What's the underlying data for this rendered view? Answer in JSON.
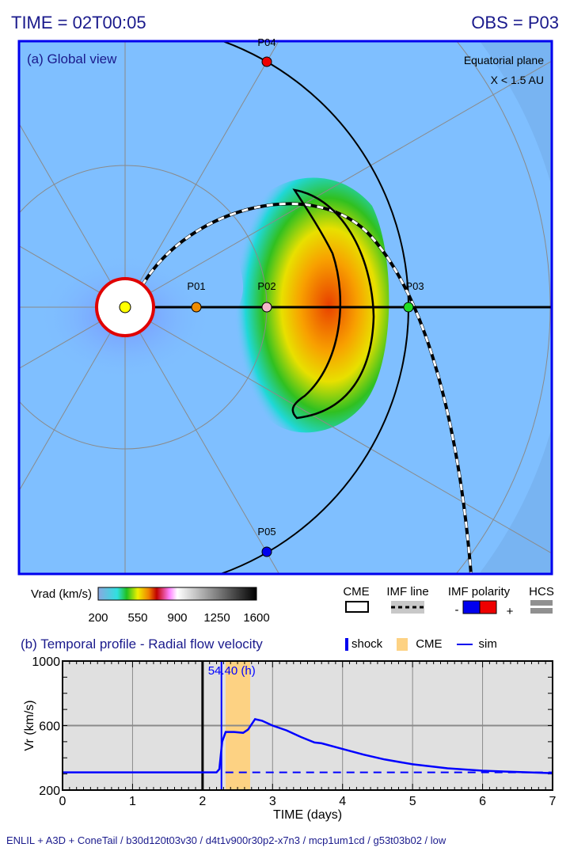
{
  "header": {
    "time": "TIME = 02T00:05",
    "obs": "OBS = P03"
  },
  "global_view": {
    "title": "(a) Global view",
    "note1": "Equatorial plane",
    "note2": "X < 1.5 AU",
    "points": [
      {
        "label": "P01",
        "color": "#f08c00"
      },
      {
        "label": "P02",
        "color": "#f4b8c8"
      },
      {
        "label": "P03",
        "color": "#22dd22"
      },
      {
        "label": "P04",
        "color": "#ee0000"
      },
      {
        "label": "P05",
        "color": "#0000ee"
      }
    ]
  },
  "colorbar": {
    "label": "Vrad (km/s)",
    "ticks": [
      "200",
      "550",
      "900",
      "1250",
      "1600"
    ]
  },
  "legend_top": {
    "cme": "CME",
    "imf_line": "IMF line",
    "imf_polarity": "IMF polarity",
    "minus": "-",
    "plus": "+",
    "hcs": "HCS"
  },
  "legend_b": {
    "shock": "shock",
    "cme": "CME",
    "sim": "sim"
  },
  "colors": {
    "accent": "#1a1a8c",
    "sim": "#0000ff",
    "cme_band": "#fdd283",
    "plot_bg": "#e0e0e0"
  },
  "chart_data": {
    "type": "line",
    "title": "(b) Temporal profile - Radial flow velocity",
    "xlabel": "TIME (days)",
    "ylabel": "Vr (km/s)",
    "xlim": [
      0,
      7
    ],
    "ylim": [
      200,
      1000
    ],
    "xticks": [
      "0",
      "1",
      "2",
      "3",
      "4",
      "5",
      "6",
      "7"
    ],
    "yticks": [
      "200",
      "600",
      "1000"
    ],
    "grid": true,
    "current_time": 2.0,
    "shock_time": 2.27,
    "shock_label": "54.40 (h)",
    "cme_interval": [
      2.33,
      2.68
    ],
    "background_level": 310,
    "series": [
      {
        "name": "sim",
        "x": [
          0,
          2.2,
          2.24,
          2.28,
          2.33,
          2.45,
          2.58,
          2.65,
          2.75,
          2.85,
          3.0,
          3.2,
          3.4,
          3.6,
          3.7,
          4.0,
          4.3,
          4.6,
          5.0,
          5.5,
          6.0,
          6.5,
          7.0
        ],
        "y": [
          310,
          310,
          330,
          500,
          560,
          560,
          555,
          575,
          640,
          630,
          600,
          570,
          530,
          495,
          490,
          455,
          420,
          390,
          360,
          335,
          320,
          312,
          305
        ]
      }
    ]
  },
  "footer": "ENLIL + A3D + ConeTail / b30d120t03v30 / d4t1v900r30p2-x7n3 / mcp1um1cd / g53t03b02 / low"
}
